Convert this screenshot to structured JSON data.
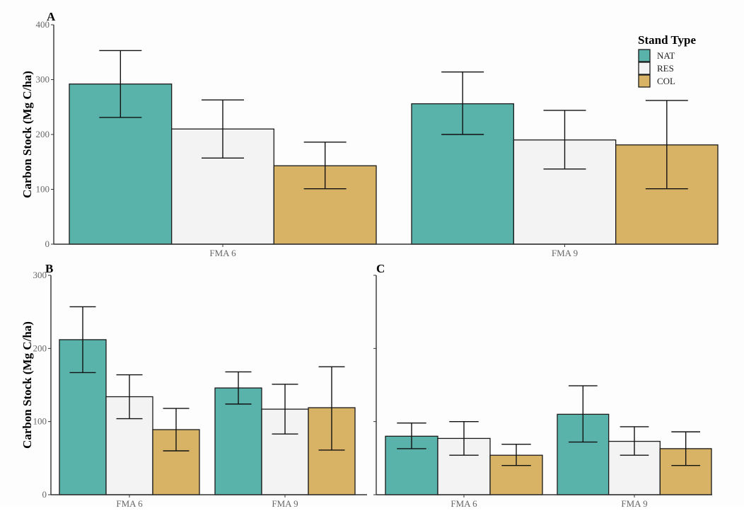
{
  "chart_data": [
    {
      "panel": "A",
      "type": "bar",
      "title": "A",
      "xlabel": "",
      "ylabel": "Carbon Stock (Mg C/ha)",
      "ylim": [
        0,
        400
      ],
      "yticks": [
        0,
        100,
        200,
        300,
        400
      ],
      "show_tick_labels": true,
      "categories": [
        "FMA 6",
        "FMA 9"
      ],
      "series": [
        {
          "name": "NAT",
          "values": [
            292,
            256
          ],
          "err_low": [
            231,
            200
          ],
          "err_high": [
            353,
            314
          ]
        },
        {
          "name": "RES",
          "values": [
            210,
            190
          ],
          "err_low": [
            157,
            137
          ],
          "err_high": [
            263,
            244
          ]
        },
        {
          "name": "COL",
          "values": [
            143,
            181
          ],
          "err_low": [
            101,
            101
          ],
          "err_high": [
            186,
            262
          ]
        }
      ],
      "grid": false
    },
    {
      "panel": "B",
      "type": "bar",
      "title": "B",
      "xlabel": "",
      "ylabel": "Carbon Stock (Mg C/ha)",
      "ylim": [
        0,
        300
      ],
      "yticks": [
        0,
        100,
        200,
        300
      ],
      "show_tick_labels": true,
      "categories": [
        "FMA 6",
        "FMA 9"
      ],
      "series": [
        {
          "name": "NAT",
          "values": [
            212,
            146
          ],
          "err_low": [
            167,
            124
          ],
          "err_high": [
            257,
            168
          ]
        },
        {
          "name": "RES",
          "values": [
            134,
            117
          ],
          "err_low": [
            104,
            83
          ],
          "err_high": [
            164,
            151
          ]
        },
        {
          "name": "COL",
          "values": [
            89,
            119
          ],
          "err_low": [
            60,
            61
          ],
          "err_high": [
            118,
            175
          ]
        }
      ],
      "grid": false
    },
    {
      "panel": "C",
      "type": "bar",
      "title": "C",
      "xlabel": "",
      "ylabel": "",
      "ylim": [
        0,
        300
      ],
      "yticks": [
        0,
        100,
        200,
        300
      ],
      "show_tick_labels": false,
      "categories": [
        "FMA 6",
        "FMA 9"
      ],
      "series": [
        {
          "name": "NAT",
          "values": [
            80,
            110
          ],
          "err_low": [
            63,
            72
          ],
          "err_high": [
            98,
            149
          ]
        },
        {
          "name": "RES",
          "values": [
            77,
            73
          ],
          "err_low": [
            54,
            54
          ],
          "err_high": [
            100,
            93
          ]
        },
        {
          "name": "COL",
          "values": [
            54,
            63
          ],
          "err_low": [
            40,
            40
          ],
          "err_high": [
            69,
            86
          ]
        }
      ],
      "grid": false
    }
  ],
  "legend": {
    "title": "Stand Type",
    "placement": "top-right",
    "items": [
      {
        "label": "NAT",
        "color": "#5ab3aa"
      },
      {
        "label": "RES",
        "color": "#f3f3f3"
      },
      {
        "label": "COL",
        "color": "#d8b265"
      }
    ]
  },
  "colors": {
    "NAT": "#5ab3aa",
    "RES": "#f3f3f3",
    "COL": "#d8b265",
    "axis": "#333333",
    "outline": "#1a1a1a"
  }
}
